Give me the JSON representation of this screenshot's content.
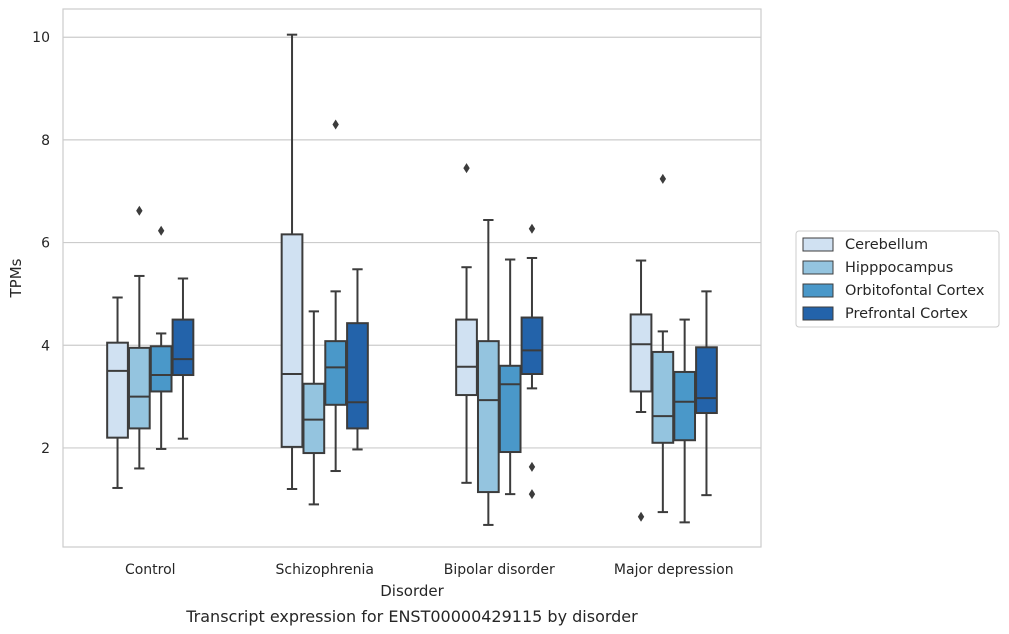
{
  "chart_data": {
    "type": "box",
    "title": "",
    "caption": "Transcript expression for ENST00000429115 by disorder",
    "xlabel": "Disorder",
    "ylabel": "TPMs",
    "categories": [
      "Control",
      "Schizophrenia",
      "Bipolar disorder",
      "Major depression"
    ],
    "yticks": [
      2,
      4,
      6,
      8,
      10
    ],
    "ylim": [
      0.07,
      10.55
    ],
    "grid": "horizontal",
    "legend_position": "right",
    "series": [
      {
        "name": "Cerebellum",
        "color": "#d0e1f2",
        "boxes": [
          {
            "whislo": 1.22,
            "q1": 2.2,
            "med": 3.5,
            "q3": 4.05,
            "whishi": 4.93,
            "fliers": []
          },
          {
            "whislo": 1.2,
            "q1": 2.02,
            "med": 3.44,
            "q3": 6.16,
            "whishi": 10.05,
            "fliers": []
          },
          {
            "whislo": 1.32,
            "q1": 3.03,
            "med": 3.58,
            "q3": 4.5,
            "whishi": 5.52,
            "fliers": [
              7.45
            ]
          },
          {
            "whislo": 2.7,
            "q1": 3.1,
            "med": 4.02,
            "q3": 4.6,
            "whishi": 5.65,
            "fliers": [
              0.66
            ]
          }
        ]
      },
      {
        "name": "Hipppocampus",
        "color": "#94c4df",
        "boxes": [
          {
            "whislo": 1.6,
            "q1": 2.38,
            "med": 3.0,
            "q3": 3.95,
            "whishi": 5.35,
            "fliers": [
              6.62
            ]
          },
          {
            "whislo": 0.9,
            "q1": 1.9,
            "med": 2.55,
            "q3": 3.25,
            "whishi": 4.66,
            "fliers": []
          },
          {
            "whislo": 0.5,
            "q1": 1.14,
            "med": 2.93,
            "q3": 4.08,
            "whishi": 6.44,
            "fliers": []
          },
          {
            "whislo": 0.75,
            "q1": 2.1,
            "med": 2.62,
            "q3": 3.87,
            "whishi": 4.27,
            "fliers": [
              7.24
            ]
          }
        ]
      },
      {
        "name": "Orbitofontal Cortex",
        "color": "#4a98c9",
        "boxes": [
          {
            "whislo": 1.98,
            "q1": 3.1,
            "med": 3.42,
            "q3": 3.98,
            "whishi": 4.23,
            "fliers": [
              6.23
            ]
          },
          {
            "whislo": 1.55,
            "q1": 2.84,
            "med": 3.57,
            "q3": 4.08,
            "whishi": 5.05,
            "fliers": [
              8.3
            ]
          },
          {
            "whislo": 1.1,
            "q1": 1.92,
            "med": 3.24,
            "q3": 3.6,
            "whishi": 5.67,
            "fliers": []
          },
          {
            "whislo": 0.55,
            "q1": 2.15,
            "med": 2.9,
            "q3": 3.48,
            "whishi": 4.5,
            "fliers": []
          }
        ]
      },
      {
        "name": "Prefrontal Cortex",
        "color": "#2363aa",
        "boxes": [
          {
            "whislo": 2.18,
            "q1": 3.42,
            "med": 3.73,
            "q3": 4.5,
            "whishi": 5.3,
            "fliers": []
          },
          {
            "whislo": 1.97,
            "q1": 2.38,
            "med": 2.89,
            "q3": 4.43,
            "whishi": 5.48,
            "fliers": []
          },
          {
            "whislo": 3.16,
            "q1": 3.44,
            "med": 3.9,
            "q3": 4.54,
            "whishi": 5.7,
            "fliers": [
              6.27,
              1.63,
              1.1
            ]
          },
          {
            "whislo": 1.08,
            "q1": 2.68,
            "med": 2.97,
            "q3": 3.96,
            "whishi": 5.05,
            "fliers": []
          }
        ]
      }
    ]
  }
}
